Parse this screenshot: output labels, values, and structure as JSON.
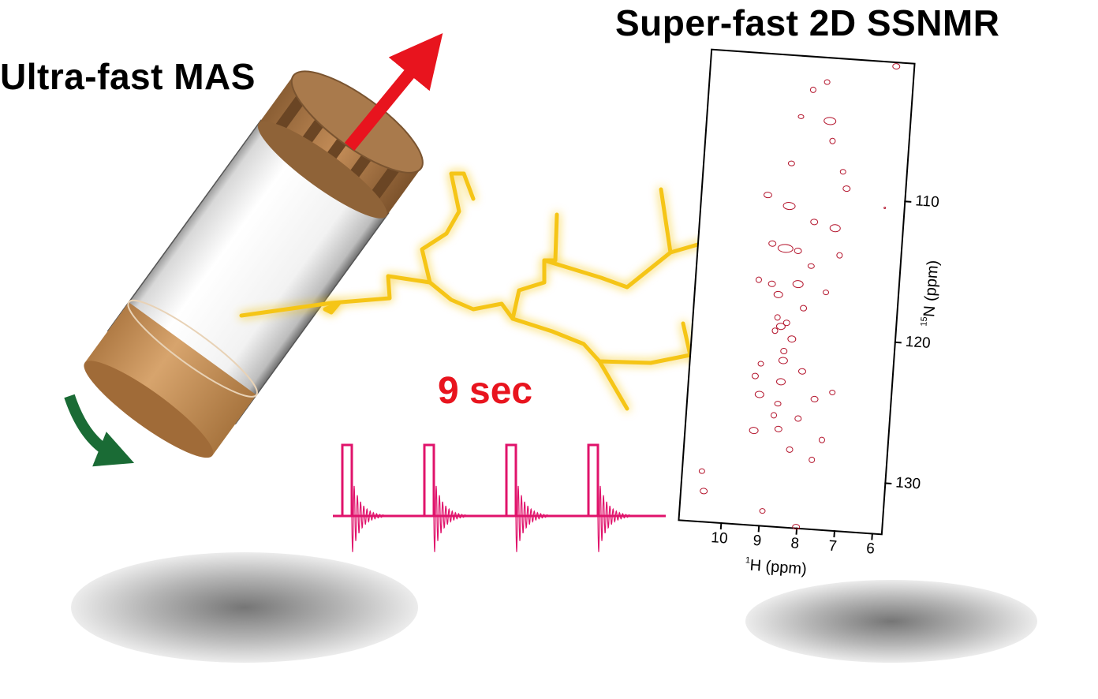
{
  "title_left": "Ultra-fast MAS",
  "title_right": "Super-fast 2D SSNMR",
  "time_label": "9 sec",
  "spectrum": {
    "x_axis": {
      "isotope": "1",
      "label": "H (ppm)",
      "ticks": [
        "10",
        "9",
        "8",
        "7",
        "6"
      ]
    },
    "y_axis": {
      "isotope": "15",
      "label": "N (ppm)",
      "ticks": [
        "110",
        "120",
        "130"
      ]
    }
  },
  "colors": {
    "rotor_cap": "#a97a4c",
    "rotor_groove": "#7a5430",
    "rotor_base": "#c9955f",
    "spin_arrow": "#1a6b35",
    "axis_arrow": "#e8141e",
    "protein_chain": "#f5c518",
    "pulse_sequence": "#e0136b",
    "peaks": "#b3122a",
    "time_label": "#e8141e"
  },
  "icons": [
    "mas-rotor-icon",
    "spin-direction-arrow-icon",
    "magic-angle-arrow-icon",
    "protein-backbone-icon",
    "pulse-sequence-icon"
  ]
}
